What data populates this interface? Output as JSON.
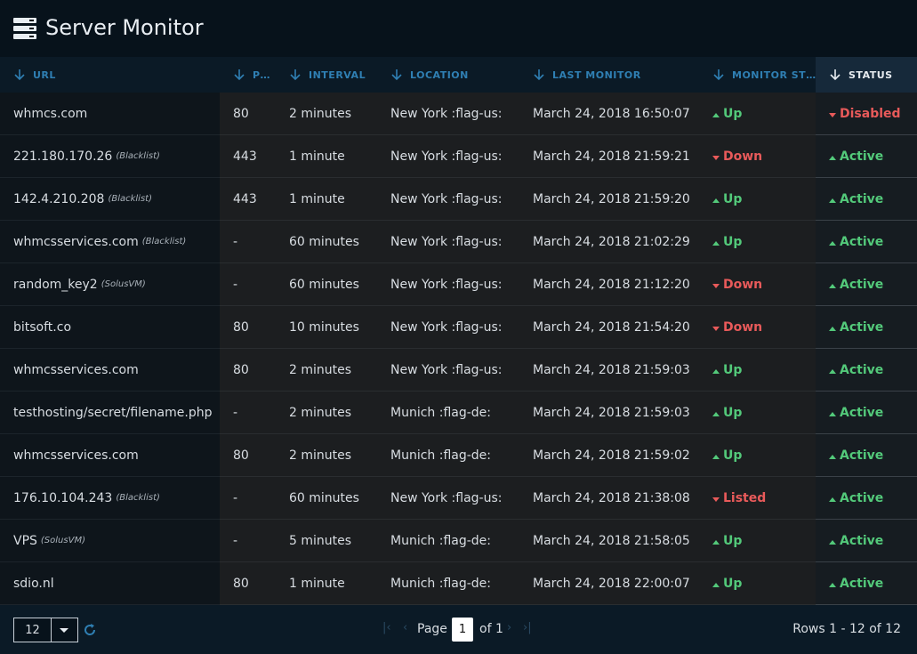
{
  "header": {
    "title": "Server Monitor"
  },
  "table": {
    "columns": [
      "URL",
      "P…",
      "INTERVAL",
      "LOCATION",
      "LAST MONITOR",
      "MONITOR ST…",
      "STATUS"
    ],
    "rows": [
      {
        "url": "whmcs.com",
        "port": "80",
        "interval": "2 minutes",
        "location": "New York :flag-us:",
        "last_monitor": "March 24, 2018 16:50:07",
        "monitor_status": "Up",
        "monitor_ok": true,
        "status": "Disabled",
        "status_ok": false
      },
      {
        "url": "221.180.170.26",
        "tag": "(Blacklist)",
        "port": "443",
        "interval": "1 minute",
        "location": "New York :flag-us:",
        "last_monitor": "March 24, 2018 21:59:21",
        "monitor_status": "Down",
        "monitor_ok": false,
        "status": "Active",
        "status_ok": true
      },
      {
        "url": "142.4.210.208",
        "tag": "(Blacklist)",
        "port": "443",
        "interval": "1 minute",
        "location": "New York :flag-us:",
        "last_monitor": "March 24, 2018 21:59:20",
        "monitor_status": "Up",
        "monitor_ok": true,
        "status": "Active",
        "status_ok": true
      },
      {
        "url": "whmcsservices.com",
        "tag": "(Blacklist)",
        "port": "-",
        "interval": "60 minutes",
        "location": "New York :flag-us:",
        "last_monitor": "March 24, 2018 21:02:29",
        "monitor_status": "Up",
        "monitor_ok": true,
        "status": "Active",
        "status_ok": true
      },
      {
        "url": "random_key2",
        "tag": "(SolusVM)",
        "port": "-",
        "interval": "60 minutes",
        "location": "New York :flag-us:",
        "last_monitor": "March 24, 2018 21:12:20",
        "monitor_status": "Down",
        "monitor_ok": false,
        "status": "Active",
        "status_ok": true
      },
      {
        "url": "bitsoft.co",
        "port": "80",
        "interval": "10 minutes",
        "location": "New York :flag-us:",
        "last_monitor": "March 24, 2018 21:54:20",
        "monitor_status": "Down",
        "monitor_ok": false,
        "status": "Active",
        "status_ok": true
      },
      {
        "url": "whmcsservices.com",
        "port": "80",
        "interval": "2 minutes",
        "location": "New York :flag-us:",
        "last_monitor": "March 24, 2018 21:59:03",
        "monitor_status": "Up",
        "monitor_ok": true,
        "status": "Active",
        "status_ok": true
      },
      {
        "url": "testhosting/secret/filename.php",
        "port": "-",
        "interval": "2 minutes",
        "location": "Munich :flag-de:",
        "last_monitor": "March 24, 2018 21:59:03",
        "monitor_status": "Up",
        "monitor_ok": true,
        "status": "Active",
        "status_ok": true
      },
      {
        "url": "whmcsservices.com",
        "port": "80",
        "interval": "2 minutes",
        "location": "Munich :flag-de:",
        "last_monitor": "March 24, 2018 21:59:02",
        "monitor_status": "Up",
        "monitor_ok": true,
        "status": "Active",
        "status_ok": true
      },
      {
        "url": "176.10.104.243",
        "tag": "(Blacklist)",
        "port": "-",
        "interval": "60 minutes",
        "location": "New York :flag-us:",
        "last_monitor": "March 24, 2018 21:38:08",
        "monitor_status": "Listed",
        "monitor_ok": false,
        "status": "Active",
        "status_ok": true
      },
      {
        "url": "VPS",
        "tag": "(SolusVM)",
        "port": "-",
        "interval": "5 minutes",
        "location": "Munich :flag-de:",
        "last_monitor": "March 24, 2018 21:58:05",
        "monitor_status": "Up",
        "monitor_ok": true,
        "status": "Active",
        "status_ok": true
      },
      {
        "url": "sdio.nl",
        "port": "80",
        "interval": "1 minute",
        "location": "Munich :flag-de:",
        "last_monitor": "March 24, 2018 22:00:07",
        "monitor_status": "Up",
        "monitor_ok": true,
        "status": "Active",
        "status_ok": true
      }
    ]
  },
  "footer": {
    "page_size": "12",
    "page_label": "Page",
    "page": "1",
    "page_total": "of 1",
    "rows_info": "Rows 1 - 12 of 12"
  }
}
